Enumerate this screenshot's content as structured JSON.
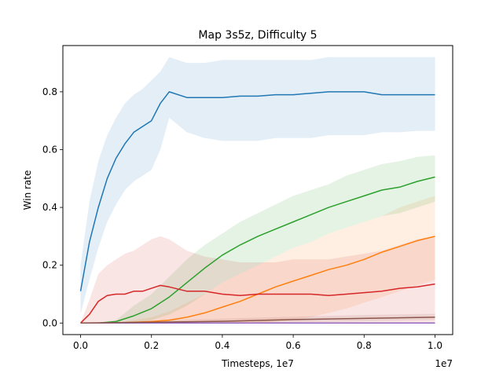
{
  "chart_data": {
    "type": "line",
    "title": "Map 3s5z, Difficulty 5",
    "xlabel": "Timesteps, 1e7",
    "ylabel": "Win rate",
    "x_offset_label": "1e7",
    "xlim": [
      -0.05,
      1.05
    ],
    "ylim": [
      -0.04,
      0.96
    ],
    "xticks": [
      0.0,
      0.2,
      0.4,
      0.6,
      0.8,
      1.0
    ],
    "yticks": [
      0.0,
      0.2,
      0.4,
      0.6,
      0.8
    ],
    "grid": false,
    "series": [
      {
        "color": "#1f77b4",
        "x": [
          0.0,
          0.025,
          0.05,
          0.075,
          0.1,
          0.125,
          0.15,
          0.175,
          0.2,
          0.225,
          0.25,
          0.3,
          0.35,
          0.4,
          0.45,
          0.5,
          0.55,
          0.6,
          0.65,
          0.7,
          0.75,
          0.8,
          0.85,
          0.9,
          0.95,
          1.0
        ],
        "y": [
          0.11,
          0.28,
          0.4,
          0.5,
          0.57,
          0.62,
          0.66,
          0.68,
          0.7,
          0.76,
          0.8,
          0.78,
          0.78,
          0.78,
          0.785,
          0.785,
          0.79,
          0.79,
          0.795,
          0.8,
          0.8,
          0.8,
          0.79,
          0.79,
          0.79,
          0.79
        ],
        "lower": [
          0.03,
          0.15,
          0.26,
          0.35,
          0.41,
          0.46,
          0.49,
          0.51,
          0.53,
          0.6,
          0.71,
          0.66,
          0.64,
          0.63,
          0.63,
          0.63,
          0.64,
          0.64,
          0.64,
          0.65,
          0.65,
          0.65,
          0.66,
          0.66,
          0.665,
          0.665
        ],
        "upper": [
          0.2,
          0.42,
          0.56,
          0.65,
          0.71,
          0.76,
          0.79,
          0.81,
          0.84,
          0.87,
          0.92,
          0.9,
          0.9,
          0.91,
          0.91,
          0.91,
          0.91,
          0.91,
          0.91,
          0.92,
          0.92,
          0.92,
          0.92,
          0.92,
          0.92,
          0.92
        ]
      },
      {
        "color": "#ff7f0e",
        "x": [
          0.0,
          0.1,
          0.2,
          0.25,
          0.3,
          0.35,
          0.4,
          0.45,
          0.5,
          0.55,
          0.6,
          0.65,
          0.7,
          0.75,
          0.8,
          0.85,
          0.9,
          0.95,
          1.0
        ],
        "y": [
          0.0,
          0.0,
          0.005,
          0.01,
          0.02,
          0.035,
          0.055,
          0.075,
          0.1,
          0.125,
          0.145,
          0.165,
          0.185,
          0.2,
          0.22,
          0.245,
          0.265,
          0.285,
          0.3
        ],
        "lower": [
          0.0,
          0.0,
          0.0,
          0.0,
          0.0,
          0.0,
          0.0,
          0.0,
          0.0,
          0.005,
          0.01,
          0.02,
          0.035,
          0.05,
          0.07,
          0.09,
          0.11,
          0.13,
          0.15
        ],
        "upper": [
          0.0,
          0.0,
          0.02,
          0.04,
          0.07,
          0.1,
          0.14,
          0.17,
          0.2,
          0.23,
          0.26,
          0.28,
          0.31,
          0.33,
          0.35,
          0.37,
          0.4,
          0.42,
          0.44
        ]
      },
      {
        "color": "#2ca02c",
        "x": [
          0.0,
          0.05,
          0.1,
          0.15,
          0.2,
          0.25,
          0.3,
          0.35,
          0.4,
          0.45,
          0.5,
          0.55,
          0.6,
          0.65,
          0.7,
          0.75,
          0.8,
          0.85,
          0.9,
          0.95,
          1.0
        ],
        "y": [
          0.0,
          0.0,
          0.005,
          0.025,
          0.05,
          0.09,
          0.14,
          0.19,
          0.235,
          0.27,
          0.3,
          0.325,
          0.35,
          0.375,
          0.4,
          0.42,
          0.44,
          0.46,
          0.47,
          0.49,
          0.505
        ],
        "lower": [
          0.0,
          0.0,
          0.0,
          0.0,
          0.01,
          0.03,
          0.06,
          0.1,
          0.14,
          0.17,
          0.2,
          0.23,
          0.26,
          0.28,
          0.31,
          0.33,
          0.35,
          0.37,
          0.38,
          0.4,
          0.42
        ],
        "upper": [
          0.0,
          0.0,
          0.01,
          0.06,
          0.1,
          0.16,
          0.22,
          0.27,
          0.31,
          0.35,
          0.38,
          0.41,
          0.44,
          0.46,
          0.48,
          0.51,
          0.53,
          0.55,
          0.56,
          0.575,
          0.58
        ]
      },
      {
        "color": "#d62728",
        "x": [
          0.0,
          0.025,
          0.05,
          0.075,
          0.1,
          0.125,
          0.15,
          0.175,
          0.2,
          0.225,
          0.25,
          0.3,
          0.35,
          0.4,
          0.45,
          0.5,
          0.55,
          0.6,
          0.65,
          0.7,
          0.75,
          0.8,
          0.85,
          0.9,
          0.95,
          1.0
        ],
        "y": [
          0.0,
          0.03,
          0.075,
          0.095,
          0.1,
          0.1,
          0.11,
          0.11,
          0.12,
          0.13,
          0.125,
          0.11,
          0.11,
          0.1,
          0.095,
          0.1,
          0.1,
          0.1,
          0.1,
          0.095,
          0.1,
          0.105,
          0.11,
          0.12,
          0.125,
          0.135
        ],
        "lower": [
          0.0,
          0.0,
          0.0,
          0.0,
          0.0,
          0.0,
          0.0,
          0.0,
          0.0,
          0.0,
          0.0,
          0.0,
          0.0,
          0.0,
          0.0,
          0.0,
          0.0,
          0.0,
          0.0,
          0.0,
          0.0,
          0.0,
          0.0,
          0.0,
          0.0,
          0.0
        ],
        "upper": [
          0.0,
          0.08,
          0.17,
          0.2,
          0.22,
          0.24,
          0.25,
          0.27,
          0.29,
          0.3,
          0.29,
          0.25,
          0.23,
          0.22,
          0.21,
          0.21,
          0.21,
          0.22,
          0.22,
          0.22,
          0.23,
          0.24,
          0.25,
          0.27,
          0.29,
          0.3
        ]
      },
      {
        "color": "#9467bd",
        "x": [
          0.0,
          0.2,
          0.4,
          0.6,
          0.8,
          1.0
        ],
        "y": [
          0.0,
          0.0,
          0.0,
          0.0,
          0.0,
          0.0
        ],
        "lower": [
          0.0,
          0.0,
          0.0,
          0.0,
          0.0,
          0.0
        ],
        "upper": [
          0.0,
          0.0,
          0.0,
          0.0,
          0.0,
          0.0
        ]
      },
      {
        "color": "#8c564b",
        "x": [
          0.0,
          0.2,
          0.4,
          0.6,
          0.8,
          1.0
        ],
        "y": [
          0.0,
          0.003,
          0.006,
          0.012,
          0.016,
          0.02
        ],
        "lower": [
          0.0,
          0.0,
          0.0,
          0.003,
          0.006,
          0.01
        ],
        "upper": [
          0.0,
          0.008,
          0.015,
          0.022,
          0.028,
          0.032
        ]
      }
    ]
  }
}
